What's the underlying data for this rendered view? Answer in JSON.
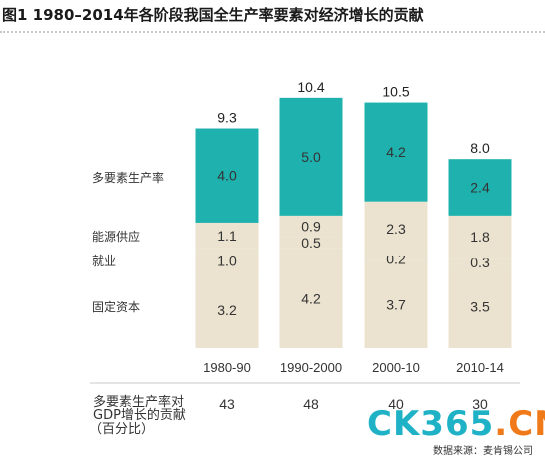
{
  "title": "图1  1980–2014年各阶段我国全生产率要素对经济增长的贡献",
  "chart_data": {
    "type": "bar",
    "stacked": true,
    "categories": [
      "1980-90",
      "1990-2000",
      "2000-10",
      "2010-14"
    ],
    "totals": [
      "9.3",
      "10.4",
      "10.5",
      "8.0"
    ],
    "series": [
      {
        "name": "固定资本",
        "values": [
          3.2,
          4.2,
          3.7,
          3.5
        ],
        "labels": [
          "3.2",
          "4.2",
          "3.7",
          "3.5"
        ],
        "color": "#ebe3cf"
      },
      {
        "name": "就业",
        "values": [
          1.0,
          0.5,
          0.2,
          0.3
        ],
        "labels": [
          "1.0",
          "0.5",
          "0.2",
          "0.3"
        ],
        "color": "#ebe3cf"
      },
      {
        "name": "能源供应",
        "values": [
          1.1,
          0.9,
          2.3,
          1.8
        ],
        "labels": [
          "1.1",
          "0.9",
          "2.3",
          "1.8"
        ],
        "color": "#ebe3cf"
      },
      {
        "name": "多要素生产率",
        "values": [
          4.0,
          5.0,
          4.2,
          2.4
        ],
        "labels": [
          "4.0",
          "5.0",
          "4.2",
          "2.4"
        ],
        "color": "#1eb1ad"
      }
    ],
    "bottom_row": {
      "label_lines": [
        "多要素生产率对",
        "GDP增长的贡献",
        "（百分比）"
      ],
      "values": [
        "43",
        "48",
        "40",
        "30"
      ]
    }
  },
  "watermark": {
    "main": "CK365",
    "suffix": ".CN"
  },
  "source": "数据来源：麦肯锡公司"
}
